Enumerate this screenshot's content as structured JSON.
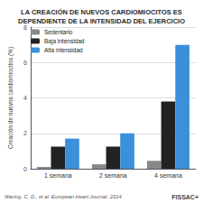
{
  "chart_data": {
    "type": "bar",
    "title": "LA CREACIÓN DE NUEVOS CARDIOMIOCITOS ES\nDEPENDIENTE DE LA INTENSIDAD DEL EJERCICIO",
    "y_label": "Creación de nuevos cardiomiocitos (%)",
    "categories": [
      "1 semana",
      "2 semana",
      "4 semana"
    ],
    "series": [
      {
        "name": "Sedentario",
        "color": "#888888",
        "values": [
          0.1,
          0.25,
          0.45
        ]
      },
      {
        "name": "Baja intensidad",
        "color": "#222222",
        "values": [
          1.25,
          1.25,
          3.8
        ]
      },
      {
        "name": "Alta intensidad",
        "color": "#3b8fdb",
        "values": [
          1.7,
          2.0,
          7.0
        ]
      }
    ],
    "ylim": [
      0,
      8
    ],
    "yticks": [
      0,
      2,
      4,
      6,
      8
    ],
    "grid": true,
    "legend": "upper left",
    "annotations": [
      "Waring, C. D., et al. European Heart Journal, 2014",
      "FISSAC+"
    ]
  }
}
